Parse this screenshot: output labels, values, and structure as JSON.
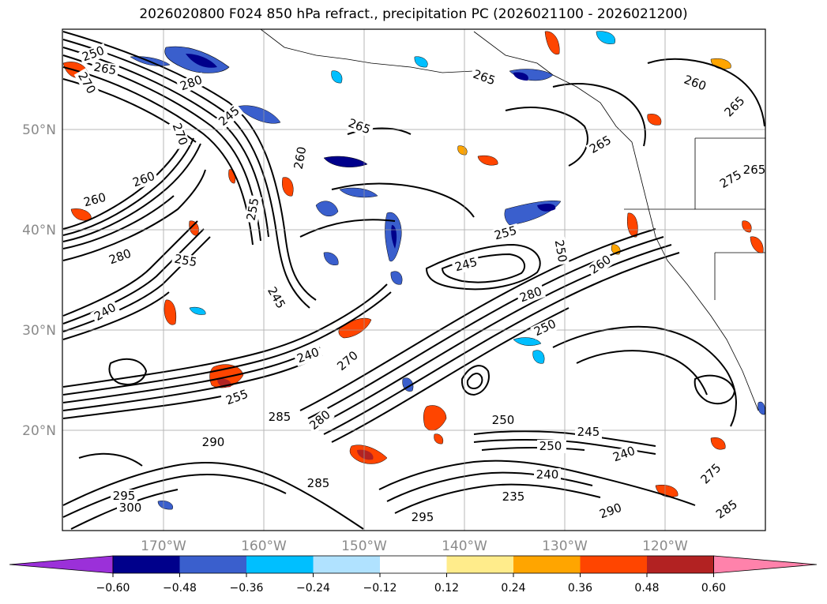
{
  "title": "2026020800 F024 850 hPa refract., precipitation PC (2026021100 - 2026021200)",
  "map": {
    "lat_labels": [
      "50°N",
      "40°N",
      "30°N",
      "20°N"
    ],
    "lon_labels": [
      "170°W",
      "160°W",
      "150°W",
      "140°W",
      "130°W",
      "120°W"
    ]
  },
  "colorbar": {
    "tick_labels": [
      "−0.60",
      "−0.48",
      "−0.36",
      "−0.24",
      "−0.12",
      "0.12",
      "0.24",
      "0.36",
      "0.48",
      "0.60"
    ],
    "colors": [
      "#9b30d9",
      "#00008b",
      "#3a5fcd",
      "#00bfff",
      "#b0e2ff",
      "#ffffff",
      "#ffec8b",
      "#ffa500",
      "#ff4500",
      "#b22222",
      "#ff82ab"
    ]
  },
  "contour_labels": [
    "250",
    "265",
    "270",
    "280",
    "245",
    "270",
    "265",
    "260",
    "265",
    "260",
    "265",
    "255",
    "250",
    "245",
    "255",
    "260",
    "260",
    "280",
    "255",
    "245",
    "280",
    "250",
    "240",
    "240",
    "250",
    "260",
    "255",
    "270",
    "285",
    "280",
    "290",
    "280",
    "250",
    "245",
    "240",
    "240",
    "285",
    "295",
    "300",
    "290",
    "275",
    "285",
    "295",
    "235",
    "265",
    "275",
    "265"
  ]
}
